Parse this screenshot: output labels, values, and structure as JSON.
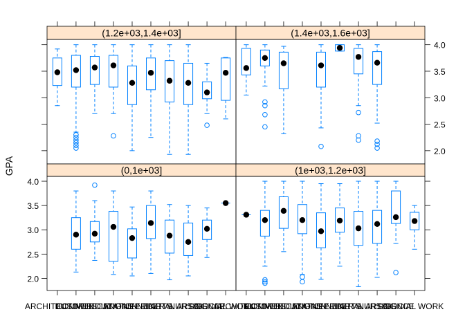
{
  "chart_data": {
    "type": "boxplot",
    "layout": "lattice 2x2",
    "ylabel": "GPA",
    "ylim": [
      1.75,
      4.1
    ],
    "yticks": [
      2.0,
      2.5,
      3.0,
      3.5,
      4.0
    ],
    "ytick_labels": [
      "2.0",
      "2.5",
      "3.0",
      "3.5",
      "4.0"
    ],
    "categories": [
      "ARCHITECTURE",
      "BUSINESS",
      "COMMUNICATIONS",
      "EDUCATION",
      "ENGINEERING",
      "FINE ARTS",
      "LIBERAL ARTS",
      "NURSING",
      "SCIENCE",
      "SOCIAL WORK"
    ],
    "strip_color": "#ffe5cc",
    "box_color": "#0080ff",
    "dot_color": "#000000",
    "panels": [
      {
        "position": "top-left",
        "strip_label": "(1.2e+03,1.4e+03]",
        "boxes": [
          {
            "category": "ARCHITECTURE",
            "min": 2.85,
            "q1": 3.23,
            "median": 3.48,
            "q3": 3.75,
            "max": 3.92,
            "outliers": []
          },
          {
            "category": "BUSINESS",
            "min": 2.35,
            "q1": 3.2,
            "median": 3.52,
            "q3": 3.8,
            "max": 4.0,
            "outliers": [
              2.3,
              2.25,
              2.2,
              2.15,
              2.1,
              2.05
            ]
          },
          {
            "category": "COMMUNICATIONS",
            "min": 2.7,
            "q1": 3.25,
            "median": 3.57,
            "q3": 3.78,
            "max": 4.0,
            "outliers": []
          },
          {
            "category": "EDUCATION",
            "min": 2.7,
            "q1": 3.2,
            "median": 3.61,
            "q3": 3.8,
            "max": 4.0,
            "outliers": [
              2.28
            ]
          },
          {
            "category": "ENGINEERING",
            "min": 2.0,
            "q1": 2.87,
            "median": 3.28,
            "q3": 3.6,
            "max": 4.0,
            "outliers": []
          },
          {
            "category": "FINE ARTS",
            "min": 2.25,
            "q1": 3.15,
            "median": 3.47,
            "q3": 3.75,
            "max": 4.0,
            "outliers": []
          },
          {
            "category": "LIBERAL ARTS",
            "min": 1.93,
            "q1": 2.92,
            "median": 3.32,
            "q3": 3.7,
            "max": 4.0,
            "outliers": []
          },
          {
            "category": "NURSING",
            "min": 1.93,
            "q1": 2.87,
            "median": 3.28,
            "q3": 3.65,
            "max": 4.0,
            "outliers": []
          },
          {
            "category": "SCIENCE",
            "min": 2.7,
            "q1": 2.98,
            "median": 3.1,
            "q3": 3.3,
            "max": 3.65,
            "outliers": [
              2.48
            ]
          },
          {
            "category": "SOCIAL WORK",
            "min": 2.6,
            "q1": 2.95,
            "median": 3.47,
            "q3": 3.75,
            "max": 3.76,
            "outliers": []
          }
        ]
      },
      {
        "position": "top-right",
        "strip_label": "(1.4e+03,1.6e+03]",
        "boxes": [
          {
            "category": "ARCHITECTURE",
            "min": 3.05,
            "q1": 3.43,
            "median": 3.56,
            "q3": 3.93,
            "max": 4.0,
            "outliers": []
          },
          {
            "category": "BUSINESS",
            "min": 3.22,
            "q1": 3.6,
            "median": 3.75,
            "q3": 3.9,
            "max": 4.0,
            "outliers": [
              2.92,
              2.85,
              2.68,
              2.45
            ]
          },
          {
            "category": "COMMUNICATIONS",
            "min": 2.32,
            "q1": 3.17,
            "median": 3.65,
            "q3": 3.86,
            "max": 3.97,
            "outliers": []
          },
          {
            "category": "EDUCATION",
            "min": null,
            "q1": null,
            "median": null,
            "q3": null,
            "max": null,
            "outliers": []
          },
          {
            "category": "ENGINEERING",
            "min": 2.43,
            "q1": 3.2,
            "median": 3.61,
            "q3": 3.86,
            "max": 4.0,
            "outliers": [
              2.08
            ]
          },
          {
            "category": "FINE ARTS",
            "min": 3.88,
            "q1": 3.88,
            "median": 3.94,
            "q3": 4.0,
            "max": 4.0,
            "outliers": []
          },
          {
            "category": "LIBERAL ARTS",
            "min": 2.85,
            "q1": 3.45,
            "median": 3.77,
            "q3": 3.93,
            "max": 4.0,
            "outliers": [
              2.72,
              2.28,
              2.2
            ]
          },
          {
            "category": "NURSING",
            "min": 2.52,
            "q1": 3.25,
            "median": 3.66,
            "q3": 3.87,
            "max": 4.0,
            "outliers": [
              2.18,
              2.12,
              2.05
            ]
          },
          {
            "category": "SCIENCE",
            "min": null,
            "q1": null,
            "median": null,
            "q3": null,
            "max": null,
            "outliers": []
          },
          {
            "category": "SOCIAL WORK",
            "min": null,
            "q1": null,
            "median": null,
            "q3": null,
            "max": null,
            "outliers": []
          }
        ]
      },
      {
        "position": "bottom-left",
        "strip_label": "(0,1e+03]",
        "boxes": [
          {
            "category": "ARCHITECTURE",
            "min": null,
            "q1": null,
            "median": null,
            "q3": null,
            "max": null,
            "outliers": []
          },
          {
            "category": "BUSINESS",
            "min": 2.13,
            "q1": 2.6,
            "median": 2.9,
            "q3": 3.25,
            "max": 3.8,
            "outliers": []
          },
          {
            "category": "COMMUNICATIONS",
            "min": 2.37,
            "q1": 2.75,
            "median": 2.92,
            "q3": 3.17,
            "max": 3.6,
            "outliers": [
              3.92
            ]
          },
          {
            "category": "EDUCATION",
            "min": 2.08,
            "q1": 2.35,
            "median": 3.06,
            "q3": 3.38,
            "max": 3.8,
            "outliers": []
          },
          {
            "category": "ENGINEERING",
            "min": 2.05,
            "q1": 2.42,
            "median": 2.83,
            "q3": 3.02,
            "max": 3.47,
            "outliers": []
          },
          {
            "category": "FINE ARTS",
            "min": 2.1,
            "q1": 2.82,
            "median": 3.14,
            "q3": 3.5,
            "max": 3.8,
            "outliers": []
          },
          {
            "category": "LIBERAL ARTS",
            "min": 1.97,
            "q1": 2.52,
            "median": 2.88,
            "q3": 3.2,
            "max": 3.52,
            "outliers": []
          },
          {
            "category": "NURSING",
            "min": 2.05,
            "q1": 2.47,
            "median": 2.75,
            "q3": 3.14,
            "max": 3.5,
            "outliers": []
          },
          {
            "category": "SCIENCE",
            "min": 2.43,
            "q1": 2.8,
            "median": 3.02,
            "q3": 3.2,
            "max": 3.45,
            "outliers": []
          },
          {
            "category": "SOCIAL WORK",
            "min": 3.55,
            "q1": 3.55,
            "median": 3.55,
            "q3": 3.55,
            "max": 3.55,
            "outliers": []
          }
        ]
      },
      {
        "position": "bottom-right",
        "strip_label": "(1e+03,1.2e+03]",
        "boxes": [
          {
            "category": "ARCHITECTURE",
            "min": 3.31,
            "q1": 3.31,
            "median": 3.31,
            "q3": 3.31,
            "max": 3.31,
            "outliers": []
          },
          {
            "category": "BUSINESS",
            "min": 2.25,
            "q1": 2.87,
            "median": 3.2,
            "q3": 3.4,
            "max": 4.0,
            "outliers": [
              1.97,
              1.93,
              1.9
            ]
          },
          {
            "category": "COMMUNICATIONS",
            "min": 2.55,
            "q1": 3.03,
            "median": 3.39,
            "q3": 3.68,
            "max": 4.0,
            "outliers": []
          },
          {
            "category": "EDUCATION",
            "min": 2.08,
            "q1": 2.92,
            "median": 3.2,
            "q3": 3.52,
            "max": 4.0,
            "outliers": [
              2.03,
              1.93
            ]
          },
          {
            "category": "ENGINEERING",
            "min": 1.98,
            "q1": 2.63,
            "median": 2.97,
            "q3": 3.35,
            "max": 3.95,
            "outliers": []
          },
          {
            "category": "FINE ARTS",
            "min": 2.25,
            "q1": 2.95,
            "median": 3.19,
            "q3": 3.45,
            "max": 3.95,
            "outliers": []
          },
          {
            "category": "LIBERAL ARTS",
            "min": 1.83,
            "q1": 2.68,
            "median": 3.03,
            "q3": 3.38,
            "max": 4.0,
            "outliers": []
          },
          {
            "category": "NURSING",
            "min": 2.02,
            "q1": 2.72,
            "median": 3.12,
            "q3": 3.4,
            "max": 4.0,
            "outliers": []
          },
          {
            "category": "SCIENCE",
            "min": 2.72,
            "q1": 3.13,
            "median": 3.26,
            "q3": 3.8,
            "max": 4.0,
            "outliers": [
              2.12
            ]
          },
          {
            "category": "SOCIAL WORK",
            "min": 2.6,
            "q1": 3.0,
            "median": 3.18,
            "q3": 3.36,
            "max": 3.5,
            "outliers": []
          }
        ]
      }
    ]
  }
}
